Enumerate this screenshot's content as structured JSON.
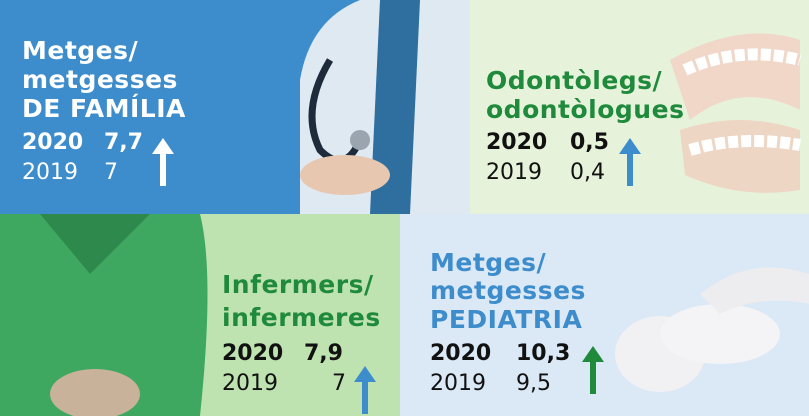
{
  "panels": [
    {
      "title_lines": [
        "Metges/",
        "metgesses",
        "DE FAMÍLIA"
      ],
      "rows": [
        {
          "year": "2020",
          "value": "7,7"
        },
        {
          "year": "2019",
          "value": "7"
        }
      ]
    },
    {
      "title_lines": [
        "Odontòlegs/",
        "odontòlogues"
      ],
      "rows": [
        {
          "year": "2020",
          "value": "0,5"
        },
        {
          "year": "2019",
          "value": "0,4"
        }
      ]
    },
    {
      "title_lines": [
        "Infermers/",
        "infermeres"
      ],
      "rows": [
        {
          "year": "2020",
          "value": "7,9"
        },
        {
          "year": "2019",
          "value": "7"
        }
      ]
    },
    {
      "title_lines": [
        "Metges/",
        "metgesses",
        "PEDIATRIA"
      ],
      "rows": [
        {
          "year": "2020",
          "value": "10,3"
        },
        {
          "year": "2019",
          "value": "9,5"
        }
      ]
    }
  ]
}
